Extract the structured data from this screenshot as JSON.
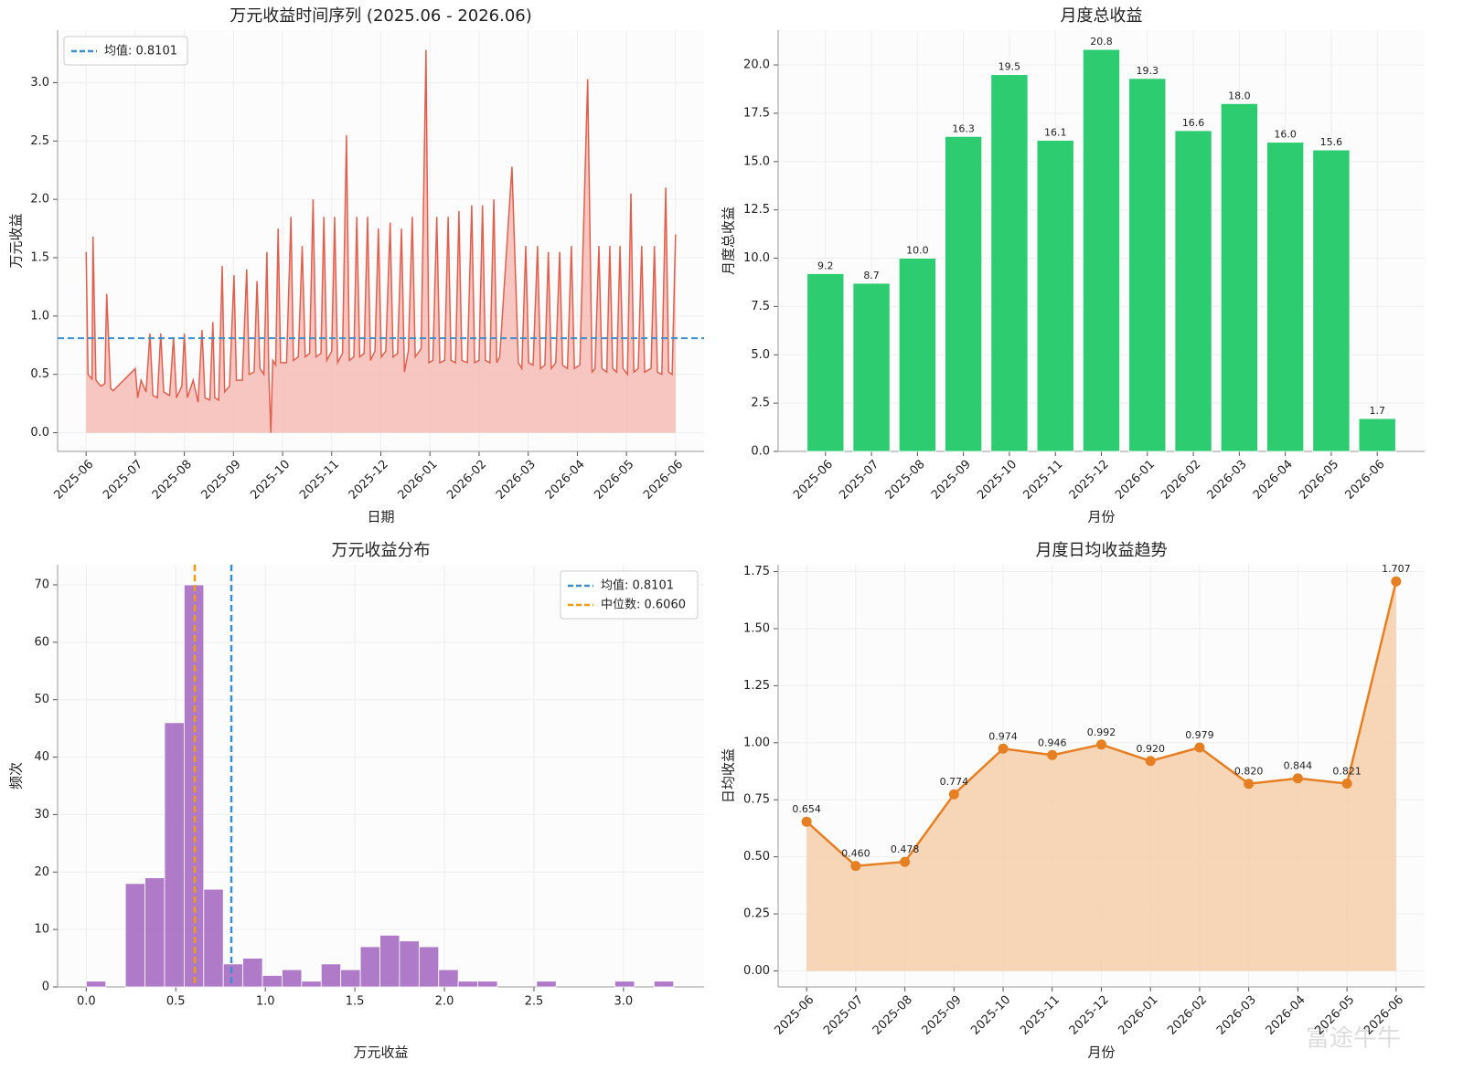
{
  "chart_data": [
    {
      "type": "area",
      "title": "万元收益时间序列 (2025.06 - 2026.06)",
      "xlabel": "日期",
      "ylabel": "万元收益",
      "x": [
        0,
        0.04,
        0.08,
        0.12,
        0.14,
        0.2,
        0.3,
        0.38,
        0.42,
        0.5,
        0.55,
        1.0,
        1.05,
        1.12,
        1.22,
        1.3,
        1.36,
        1.45,
        1.52,
        1.58,
        1.7,
        1.78,
        1.84,
        1.95,
        2.0,
        2.06,
        2.18,
        2.28,
        2.36,
        2.42,
        2.52,
        2.58,
        2.62,
        2.7,
        2.77,
        2.82,
        2.92,
        3.01,
        3.06,
        3.18,
        3.27,
        3.32,
        3.42,
        3.48,
        3.54,
        3.62,
        3.68,
        3.72,
        3.76,
        3.8,
        3.86,
        3.91,
        3.96,
        4.08,
        4.17,
        4.22,
        4.32,
        4.4,
        4.46,
        4.55,
        4.62,
        4.68,
        4.78,
        4.84,
        4.9,
        5.0,
        5.06,
        5.12,
        5.22,
        5.3,
        5.36,
        5.45,
        5.51,
        5.57,
        5.66,
        5.73,
        5.79,
        5.88,
        5.95,
        6.01,
        6.1,
        6.19,
        6.25,
        6.34,
        6.42,
        6.48,
        6.56,
        6.64,
        6.7,
        6.82,
        6.92,
        6.98,
        7.06,
        7.14,
        7.2,
        7.3,
        7.37,
        7.43,
        7.52,
        7.59,
        7.65,
        7.76,
        7.85,
        7.91,
        8.0,
        8.07,
        8.13,
        8.22,
        8.3,
        8.36,
        8.42,
        8.67,
        8.8,
        8.87,
        8.95,
        9.01,
        9.1,
        9.19,
        9.25,
        9.34,
        9.41,
        9.47,
        9.56,
        9.64,
        9.7,
        9.8,
        9.88,
        9.94,
        10.05,
        10.21,
        10.3,
        10.36,
        10.44,
        10.5,
        10.6,
        10.66,
        10.72,
        10.8,
        10.87,
        10.93,
        11.02,
        11.09,
        11.15,
        11.24,
        11.31,
        11.37,
        11.5,
        11.57,
        11.63,
        11.72,
        11.8,
        11.86,
        11.93,
        12.0
      ],
      "y": [
        1.55,
        0.5,
        0.48,
        0.46,
        1.68,
        0.45,
        0.4,
        0.42,
        1.19,
        0.38,
        0.36,
        0.55,
        0.3,
        0.45,
        0.35,
        0.85,
        0.32,
        0.3,
        0.85,
        0.35,
        0.32,
        0.82,
        0.3,
        0.4,
        0.85,
        0.3,
        0.45,
        0.26,
        0.88,
        0.3,
        0.28,
        0.95,
        0.3,
        0.28,
        1.43,
        0.35,
        0.4,
        1.35,
        0.45,
        0.45,
        1.4,
        0.5,
        0.52,
        1.3,
        0.55,
        0.5,
        1.55,
        0.5,
        0,
        0.62,
        0.58,
        1.75,
        0.6,
        0.6,
        1.85,
        0.62,
        0.65,
        1.6,
        0.65,
        0.68,
        2.0,
        0.65,
        0.68,
        1.85,
        0.62,
        0.7,
        1.85,
        0.6,
        0.68,
        2.55,
        0.62,
        0.65,
        1.85,
        0.65,
        0.68,
        1.85,
        0.62,
        0.7,
        1.75,
        0.65,
        0.7,
        1.8,
        0.65,
        0.68,
        1.75,
        0.52,
        0.7,
        1.85,
        0.65,
        0.72,
        3.28,
        0.6,
        0.62,
        1.85,
        0.6,
        0.62,
        1.85,
        0.62,
        0.6,
        1.9,
        0.62,
        0.6,
        1.95,
        0.6,
        0.62,
        1.95,
        0.62,
        0.6,
        2.0,
        0.6,
        0.65,
        2.28,
        0.6,
        0.55,
        1.6,
        0.6,
        0.58,
        1.6,
        0.55,
        0.58,
        1.55,
        0.55,
        0.6,
        1.55,
        0.58,
        0.55,
        1.6,
        0.55,
        0.58,
        3.03,
        0.52,
        0.55,
        1.6,
        0.55,
        0.52,
        1.6,
        0.55,
        0.52,
        1.6,
        0.55,
        0.5,
        2.05,
        0.52,
        0.55,
        1.6,
        0.52,
        0.55,
        1.6,
        0.52,
        0.5,
        2.1,
        0.52,
        0.5,
        1.7
      ],
      "color": "#e0604f",
      "fill_color": "#f5b4ad",
      "xlim": [
        -0.58,
        12.58
      ],
      "xticks": [
        {
          "value": 0,
          "label": "2025-06"
        },
        {
          "value": 1,
          "label": "2025-07"
        },
        {
          "value": 2,
          "label": "2025-08"
        },
        {
          "value": 3,
          "label": "2025-09"
        },
        {
          "value": 4,
          "label": "2025-10"
        },
        {
          "value": 5,
          "label": "2025-11"
        },
        {
          "value": 6,
          "label": "2025-12"
        },
        {
          "value": 7,
          "label": "2026-01"
        },
        {
          "value": 8,
          "label": "2026-02"
        },
        {
          "value": 9,
          "label": "2026-03"
        },
        {
          "value": 10,
          "label": "2026-04"
        },
        {
          "value": 11,
          "label": "2026-05"
        },
        {
          "value": 12,
          "label": "2026-06"
        }
      ],
      "ylim": [
        -0.16,
        3.45
      ],
      "yticks": [
        {
          "value": 0,
          "label": "0.0"
        },
        {
          "value": 0.5,
          "label": "0.5"
        },
        {
          "value": 1,
          "label": "1.0"
        },
        {
          "value": 1.5,
          "label": "1.5"
        },
        {
          "value": 2,
          "label": "2.0"
        },
        {
          "value": 2.5,
          "label": "2.5"
        },
        {
          "value": 3,
          "label": "3.0"
        }
      ],
      "xtick_rotation": 45,
      "grid": true,
      "legend": "upper left",
      "reference_lines": [
        {
          "value": 0.8101,
          "label": "均值: 0.8101",
          "color": "#3a8fd0",
          "orientation": "horizontal"
        }
      ]
    },
    {
      "type": "bar",
      "title": "月度总收益",
      "xlabel": "月份",
      "ylabel": "月度总收益",
      "categories": [
        "2025-06",
        "2025-07",
        "2025-08",
        "2025-09",
        "2025-10",
        "2025-11",
        "2025-12",
        "2026-01",
        "2026-02",
        "2026-03",
        "2026-04",
        "2026-05",
        "2026-06"
      ],
      "values": [
        9.2,
        8.7,
        10.0,
        16.3,
        19.5,
        16.1,
        20.8,
        19.3,
        16.6,
        18.0,
        16.0,
        15.6,
        1.7
      ],
      "value_labels": [
        "9.2",
        "8.7",
        "10.0",
        "16.3",
        "19.5",
        "16.1",
        "20.8",
        "19.3",
        "16.6",
        "18.0",
        "16.0",
        "15.6",
        "1.7"
      ],
      "color": "#2ecc71",
      "ylim": [
        0,
        21.8
      ],
      "yticks": [
        {
          "value": 0,
          "label": "0.0"
        },
        {
          "value": 2.5,
          "label": "2.5"
        },
        {
          "value": 5,
          "label": "5.0"
        },
        {
          "value": 7.5,
          "label": "7.5"
        },
        {
          "value": 10,
          "label": "10.0"
        },
        {
          "value": 12.5,
          "label": "12.5"
        },
        {
          "value": 15,
          "label": "15.0"
        },
        {
          "value": 17.5,
          "label": "17.5"
        },
        {
          "value": 20,
          "label": "20.0"
        }
      ],
      "xtick_rotation": 45,
      "grid": true
    },
    {
      "type": "histogram",
      "title": "万元收益分布",
      "xlabel": "万元收益",
      "ylabel": "频次",
      "bins": [
        0,
        0.1093,
        0.2187,
        0.328,
        0.4373,
        0.5467,
        0.656,
        0.7653,
        0.8747,
        0.984,
        1.0933,
        1.2027,
        1.312,
        1.4213,
        1.5307,
        1.64,
        1.7493,
        1.8587,
        1.968,
        2.0773,
        2.1867,
        2.296,
        2.4053,
        2.5147,
        2.624,
        2.7333,
        2.8427,
        2.952,
        3.0613,
        3.1707,
        3.28
      ],
      "counts": [
        1,
        0,
        18,
        19,
        46,
        70,
        17,
        4,
        5,
        2,
        3,
        1,
        4,
        3,
        7,
        9,
        8,
        7,
        3,
        1,
        1,
        0,
        0,
        1,
        0,
        0,
        0,
        1,
        0,
        1
      ],
      "color": "#a66bc2",
      "xlim": [
        -0.16,
        3.45
      ],
      "xticks": [
        {
          "value": 0,
          "label": "0.0"
        },
        {
          "value": 0.5,
          "label": "0.5"
        },
        {
          "value": 1,
          "label": "1.0"
        },
        {
          "value": 1.5,
          "label": "1.5"
        },
        {
          "value": 2,
          "label": "2.0"
        },
        {
          "value": 2.5,
          "label": "2.5"
        },
        {
          "value": 3,
          "label": "3.0"
        }
      ],
      "ylim": [
        0,
        73.5
      ],
      "yticks": [
        0,
        10,
        20,
        30,
        40,
        50,
        60,
        70
      ],
      "grid": true,
      "legend": "upper right",
      "reference_lines": [
        {
          "value": 0.8101,
          "label": "均值: 0.8101",
          "color": "#3a8fd0",
          "orientation": "vertical"
        },
        {
          "value": 0.606,
          "label": "中位数: 0.6060",
          "color": "#f39c12",
          "orientation": "vertical"
        }
      ]
    },
    {
      "type": "area",
      "title": "月度日均收益趋势",
      "xlabel": "月份",
      "ylabel": "日均收益",
      "categories": [
        "2025-06",
        "2025-07",
        "2025-08",
        "2025-09",
        "2025-10",
        "2025-11",
        "2025-12",
        "2026-01",
        "2026-02",
        "2026-03",
        "2026-04",
        "2026-05",
        "2026-06"
      ],
      "values": [
        0.654,
        0.46,
        0.478,
        0.774,
        0.974,
        0.946,
        0.992,
        0.92,
        0.979,
        0.82,
        0.844,
        0.821,
        1.707
      ],
      "value_labels": [
        "0.654",
        "0.460",
        "0.478",
        "0.774",
        "0.974",
        "0.946",
        "0.992",
        "0.920",
        "0.979",
        "0.820",
        "0.844",
        "0.821",
        "1.707"
      ],
      "color": "#e67e22",
      "fill_color": "#f5c9a0",
      "markers": true,
      "ylim": [
        -0.07,
        1.78
      ],
      "yticks": [
        {
          "value": 0,
          "label": "0.00"
        },
        {
          "value": 0.25,
          "label": "0.25"
        },
        {
          "value": 0.5,
          "label": "0.50"
        },
        {
          "value": 0.75,
          "label": "0.75"
        },
        {
          "value": 1,
          "label": "1.00"
        },
        {
          "value": 1.25,
          "label": "1.25"
        },
        {
          "value": 1.5,
          "label": "1.50"
        },
        {
          "value": 1.75,
          "label": "1.75"
        }
      ],
      "xtick_rotation": 45,
      "grid": true
    }
  ],
  "watermark": "富途牛牛"
}
